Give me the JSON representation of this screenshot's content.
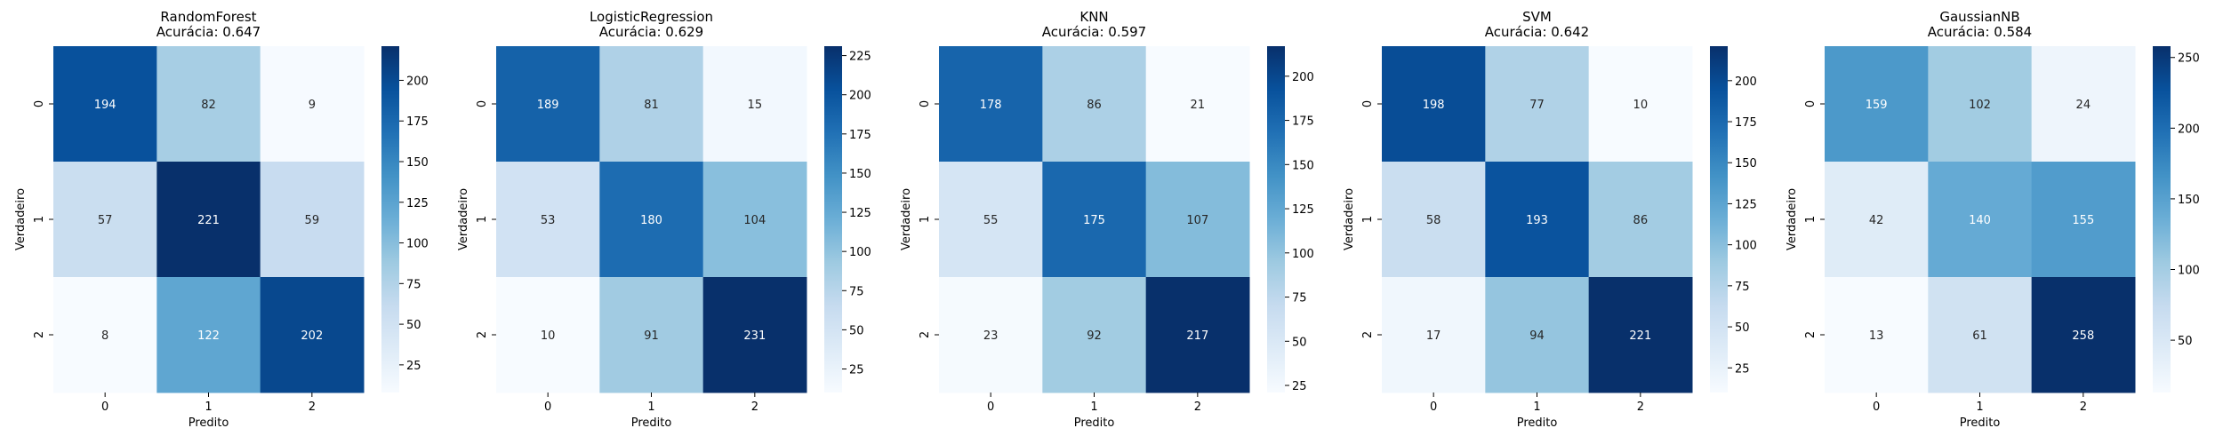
{
  "chart_data": [
    {
      "type": "heatmap",
      "title": "RandomForest",
      "subtitle": "Acurácia: 0.647",
      "xlabel": "Predito",
      "ylabel": "Verdadeiro",
      "x_categories": [
        "0",
        "1",
        "2"
      ],
      "y_categories": [
        "0",
        "1",
        "2"
      ],
      "matrix": [
        [
          194,
          82,
          9
        ],
        [
          57,
          221,
          59
        ],
        [
          8,
          122,
          202
        ]
      ],
      "colormap": "Blues",
      "colorbar_range": [
        8,
        221
      ],
      "colorbar_ticks": [
        "25",
        "50",
        "75",
        "100",
        "125",
        "150",
        "175",
        "200"
      ]
    },
    {
      "type": "heatmap",
      "title": "LogisticRegression",
      "subtitle": "Acurácia: 0.629",
      "xlabel": "Predito",
      "ylabel": "Verdadeiro",
      "x_categories": [
        "0",
        "1",
        "2"
      ],
      "y_categories": [
        "0",
        "1",
        "2"
      ],
      "matrix": [
        [
          189,
          81,
          15
        ],
        [
          53,
          180,
          104
        ],
        [
          10,
          91,
          231
        ]
      ],
      "colormap": "Blues",
      "colorbar_range": [
        10,
        231
      ],
      "colorbar_ticks": [
        "25",
        "50",
        "75",
        "100",
        "125",
        "150",
        "175",
        "200",
        "225"
      ]
    },
    {
      "type": "heatmap",
      "title": "KNN",
      "subtitle": "Acurácia: 0.597",
      "xlabel": "Predito",
      "ylabel": "Verdadeiro",
      "x_categories": [
        "0",
        "1",
        "2"
      ],
      "y_categories": [
        "0",
        "1",
        "2"
      ],
      "matrix": [
        [
          178,
          86,
          21
        ],
        [
          55,
          175,
          107
        ],
        [
          23,
          92,
          217
        ]
      ],
      "colormap": "Blues",
      "colorbar_range": [
        21,
        217
      ],
      "colorbar_ticks": [
        "25",
        "50",
        "75",
        "100",
        "125",
        "150",
        "175",
        "200"
      ]
    },
    {
      "type": "heatmap",
      "title": "SVM",
      "subtitle": "Acurácia: 0.642",
      "xlabel": "Predito",
      "ylabel": "Verdadeiro",
      "x_categories": [
        "0",
        "1",
        "2"
      ],
      "y_categories": [
        "0",
        "1",
        "2"
      ],
      "matrix": [
        [
          198,
          77,
          10
        ],
        [
          58,
          193,
          86
        ],
        [
          17,
          94,
          221
        ]
      ],
      "colormap": "Blues",
      "colorbar_range": [
        10,
        221
      ],
      "colorbar_ticks": [
        "25",
        "50",
        "75",
        "100",
        "125",
        "150",
        "175",
        "200"
      ]
    },
    {
      "type": "heatmap",
      "title": "GaussianNB",
      "subtitle": "Acurácia: 0.584",
      "xlabel": "Predito",
      "ylabel": "Verdadeiro",
      "x_categories": [
        "0",
        "1",
        "2"
      ],
      "y_categories": [
        "0",
        "1",
        "2"
      ],
      "matrix": [
        [
          159,
          102,
          24
        ],
        [
          42,
          140,
          155
        ],
        [
          13,
          61,
          258
        ]
      ],
      "colormap": "Blues",
      "colorbar_range": [
        13,
        258
      ],
      "colorbar_ticks": [
        "50",
        "100",
        "150",
        "200",
        "250"
      ]
    }
  ]
}
